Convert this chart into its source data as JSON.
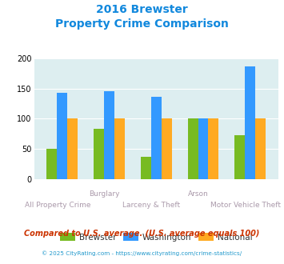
{
  "title_line1": "2016 Brewster",
  "title_line2": "Property Crime Comparison",
  "groups": [
    "All Property Crime",
    "Burglary",
    "Larceny & Theft",
    "Arson",
    "Motor Vehicle Theft"
  ],
  "brewster": [
    50,
    83,
    38,
    100,
    73
  ],
  "washington": [
    143,
    145,
    136,
    100,
    186
  ],
  "national": [
    100,
    100,
    100,
    100,
    100
  ],
  "brewster_color": "#77bb22",
  "washington_color": "#3399ff",
  "national_color": "#ffaa22",
  "bg_color": "#ddeef0",
  "ylim": [
    0,
    200
  ],
  "yticks": [
    0,
    50,
    100,
    150,
    200
  ],
  "title_color": "#1188dd",
  "legend_labels": [
    "Brewster",
    "Washington",
    "National"
  ],
  "upper_xlabels": {
    "1": "Burglary",
    "3": "Arson"
  },
  "lower_xlabels": {
    "0": "All Property Crime",
    "2": "Larceny & Theft",
    "4": "Motor Vehicle Theft"
  },
  "footnote1": "Compared to U.S. average. (U.S. average equals 100)",
  "footnote2": "© 2025 CityRating.com - https://www.cityrating.com/crime-statistics/",
  "footnote1_color": "#cc3300",
  "footnote2_color": "#2299cc"
}
